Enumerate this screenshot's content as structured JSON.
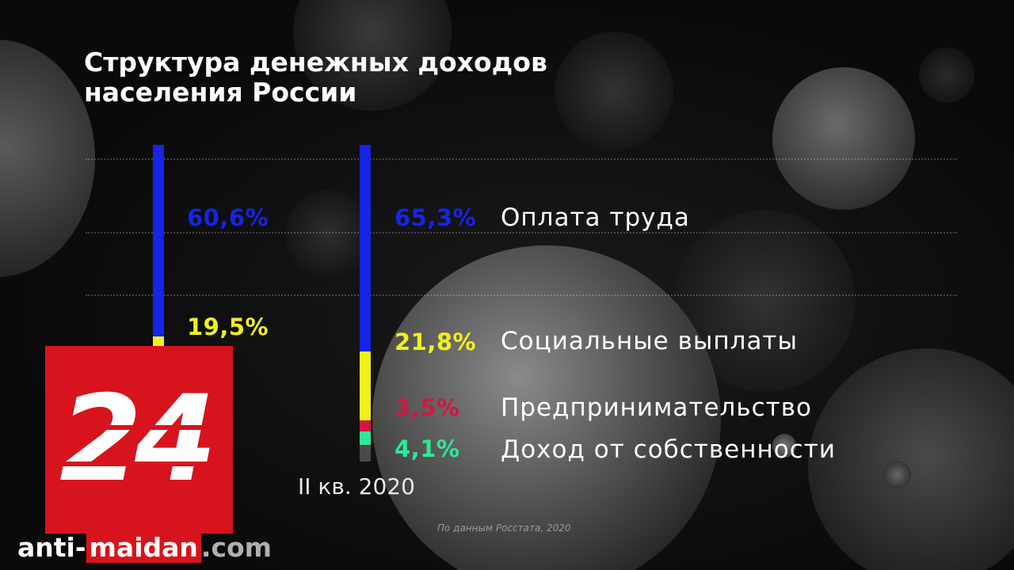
{
  "title_line1": "Структура денежных доходов",
  "title_line2": "населения России",
  "period_label": "II кв. 2020",
  "source_note": "По данным Росстата, 2020",
  "logo_text": "24",
  "watermark": {
    "part1": "anti-",
    "part2": "maidan",
    "part3": ".com"
  },
  "colors": {
    "wages": "#1624e6",
    "social": "#f0f01e",
    "business": "#d01840",
    "property": "#2ee898",
    "other": "#4a4a4a",
    "brand_red": "#d7141d"
  },
  "chart_data": {
    "type": "bar",
    "stacked": true,
    "title": "Структура денежных доходов населения России",
    "unit": "%",
    "categories": [
      "",
      "II кв. 2020"
    ],
    "series": [
      {
        "name": "Оплата труда",
        "values": [
          60.6,
          65.3
        ],
        "labels": [
          "60,6%",
          "65,3%"
        ]
      },
      {
        "name": "Социальные выплаты",
        "values": [
          19.5,
          21.8
        ],
        "labels": [
          "19,5%",
          "21,8%"
        ]
      },
      {
        "name": "Предпринимательство",
        "values": [
          null,
          3.5
        ],
        "labels": [
          "",
          "3,5%"
        ]
      },
      {
        "name": "Доход от собственности",
        "values": [
          null,
          4.1
        ],
        "labels": [
          "",
          "4,1%"
        ]
      }
    ]
  }
}
